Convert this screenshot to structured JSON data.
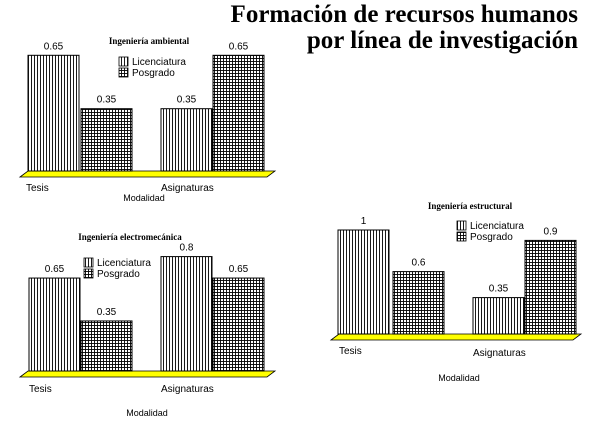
{
  "page": {
    "title_line1": "Formación de recursos humanos",
    "title_line2": "por línea de investigación"
  },
  "colors": {
    "floor": "#ffff00",
    "bar_fill": "#ffffff",
    "bar_stroke": "#000000"
  },
  "chart_data": [
    {
      "type": "bar",
      "title": "Ingeniería ambiental",
      "xlabel": "Modalidad",
      "ylabel": "",
      "categories": [
        "Tesis",
        "Asignaturas"
      ],
      "series": [
        {
          "name": "Licenciatura",
          "pattern": "vertical-lines",
          "values": [
            0.65,
            0.35
          ]
        },
        {
          "name": "Posgrado",
          "pattern": "grid",
          "values": [
            0.35,
            0.65
          ]
        }
      ],
      "value_labels": [
        [
          "0.65",
          "0.35"
        ],
        [
          "0.35",
          "0.65"
        ]
      ],
      "legend_position": "top-center",
      "grid": false,
      "3d_floor": true
    },
    {
      "type": "bar",
      "title": "Ingeniería electromecánica",
      "xlabel": "Modalidad",
      "ylabel": "",
      "categories": [
        "Tesis",
        "Asignaturas"
      ],
      "series": [
        {
          "name": "Licenciatura",
          "pattern": "vertical-lines",
          "values": [
            0.65,
            0.8
          ]
        },
        {
          "name": "Posgrado",
          "pattern": "grid",
          "values": [
            0.35,
            0.65
          ]
        }
      ],
      "value_labels": [
        [
          "0.65",
          "0.8"
        ],
        [
          "0.35",
          "0.65"
        ]
      ],
      "legend_position": "top-center",
      "grid": false,
      "3d_floor": true
    },
    {
      "type": "bar",
      "title": "Ingeniería estructural",
      "xlabel": "Modalidad",
      "ylabel": "",
      "categories": [
        "Tesis",
        "Asignaturas"
      ],
      "series": [
        {
          "name": "Licenciatura",
          "pattern": "vertical-lines",
          "values": [
            1,
            0.35
          ]
        },
        {
          "name": "Posgrado",
          "pattern": "grid",
          "values": [
            0.6,
            0.9
          ]
        }
      ],
      "value_labels": [
        [
          "1",
          "0.35"
        ],
        [
          "0.6",
          "0.9"
        ]
      ],
      "legend_position": "top-center",
      "grid": false,
      "3d_floor": true
    }
  ]
}
